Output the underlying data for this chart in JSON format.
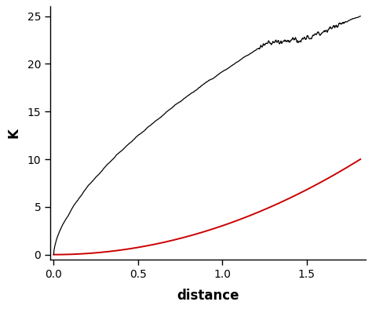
{
  "title": "",
  "xlabel": "distance",
  "ylabel": "K",
  "xlim": [
    -0.02,
    1.85
  ],
  "ylim": [
    -0.5,
    26
  ],
  "yticks": [
    0,
    5,
    10,
    15,
    20,
    25
  ],
  "xticks": [
    0.0,
    0.5,
    1.0,
    1.5
  ],
  "background_color": "#ffffff",
  "line_black_color": "#000000",
  "line_red_color": "#cc0000",
  "red_scale": 3.05,
  "seed": 12345
}
